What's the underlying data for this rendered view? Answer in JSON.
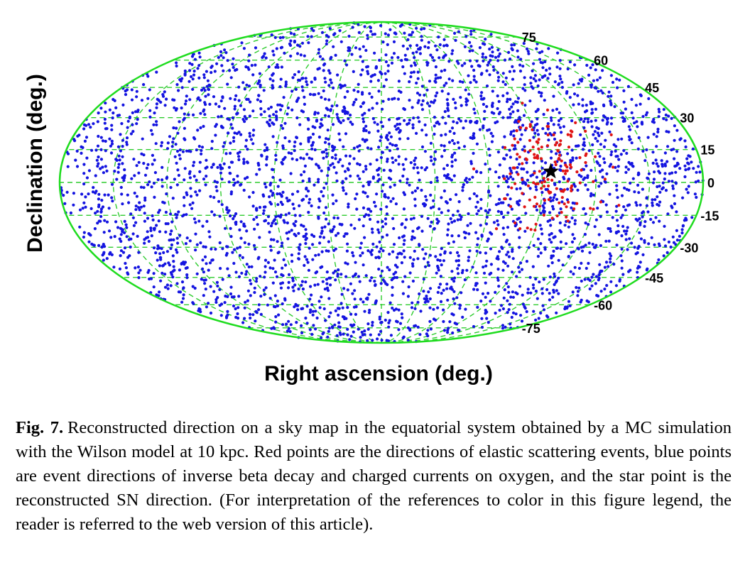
{
  "chart_data": {
    "type": "scatter",
    "projection": "mollweide sky map (equatorial)",
    "xlabel": "Right ascension (deg.)",
    "ylabel": "Declination (deg.)",
    "declination_ticks": [
      75,
      60,
      45,
      30,
      15,
      0,
      -15,
      -30,
      -45,
      -60,
      -75
    ],
    "grid": true,
    "grid_color": "#2ecc2e",
    "outline_color": "#1fdc1f",
    "series": [
      {
        "marker": "dot",
        "color": "#1414e0",
        "count_approx": 3500,
        "distribution": "isotropic over the full sky"
      },
      {
        "marker": "dot",
        "color": "#e01414",
        "count_approx": 150,
        "distribution": "clustered around the SN direction, spread ~30 deg"
      },
      {
        "marker": "star",
        "color": "#000000",
        "position": {
          "ra_offset_deg": -95,
          "dec_deg": 5
        }
      }
    ]
  },
  "caption": {
    "label": "Fig. 7.",
    "text": "Reconstructed direction on a sky map in the equatorial system obtained by a MC simulation with the Wilson model at 10 kpc. Red points are the directions of elastic scattering events, blue points are event directions of inverse beta decay and charged currents on oxygen, and the star point is the reconstructed SN direction. (For interpretation of the references to color in this figure legend, the reader is referred to the web version of this article)."
  }
}
